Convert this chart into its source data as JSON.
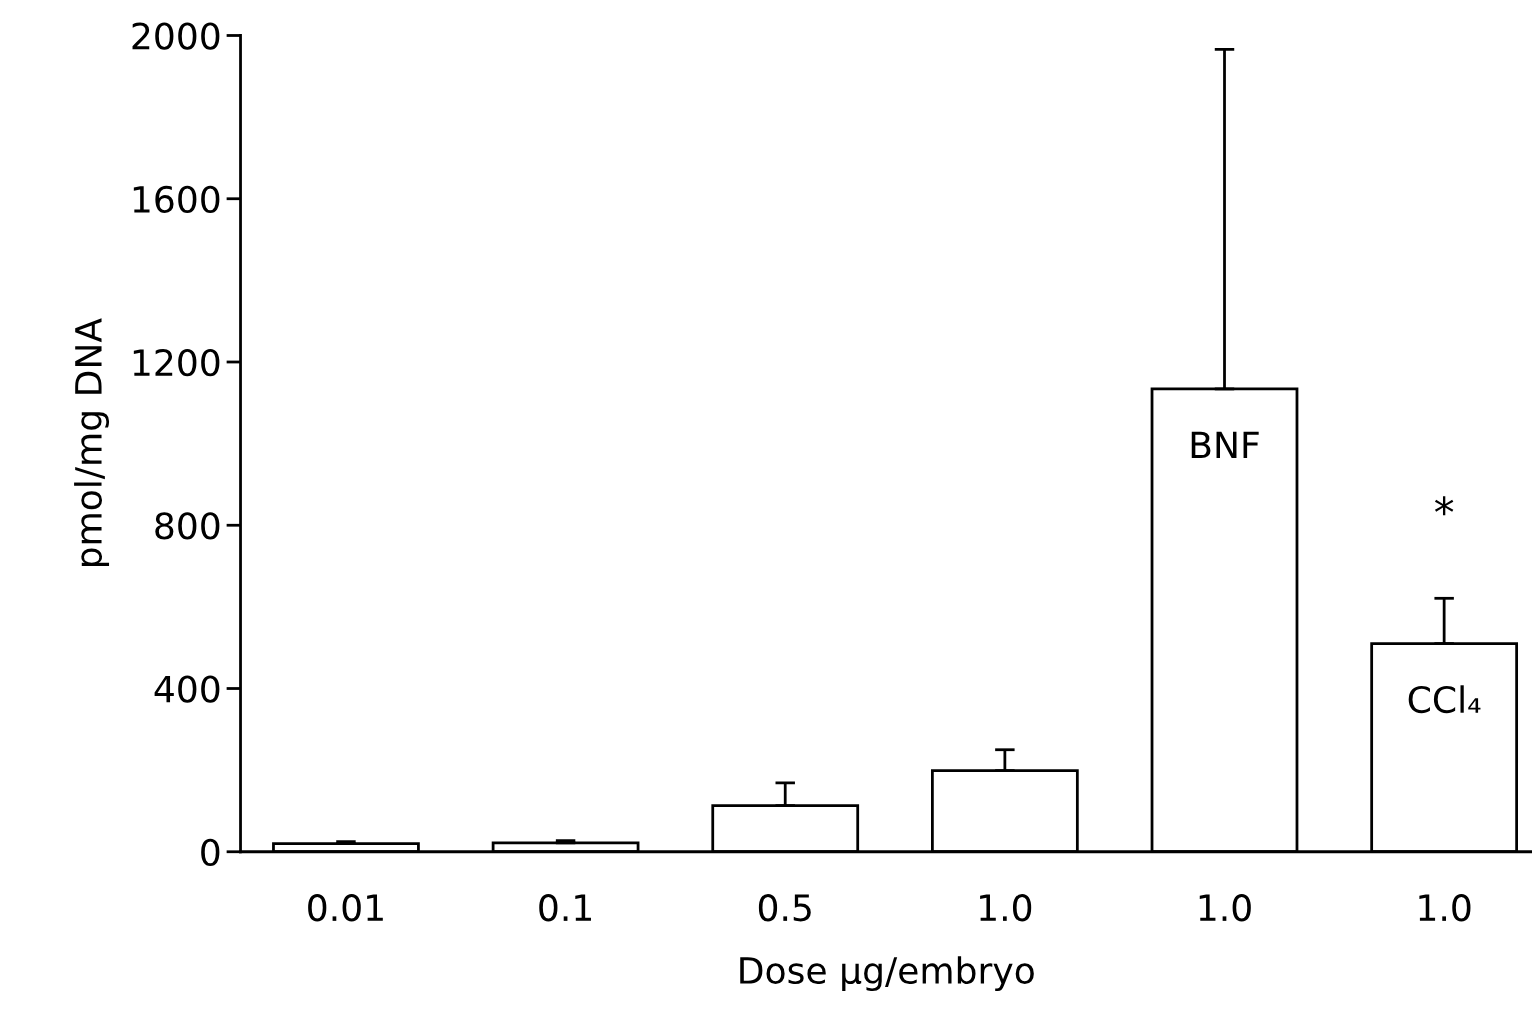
{
  "chart_data": {
    "type": "bar",
    "xlabel": "Dose μg/embryo",
    "ylabel": "pmol/mg DNA",
    "categories": [
      "0.01",
      "0.1",
      "0.5",
      "1.0",
      "1.0",
      "1.0"
    ],
    "values": [
      20,
      22,
      113,
      199,
      1134,
      510
    ],
    "errors": [
      5,
      5,
      56,
      51,
      832,
      111
    ],
    "color": "#ffffff",
    "ylim": [
      0,
      2000
    ],
    "yticks": [
      0,
      400,
      800,
      1200,
      1600,
      2000
    ],
    "grid": false,
    "legend": false,
    "value_labels": [
      null,
      null,
      null,
      null,
      "BNF",
      "CCl₄"
    ],
    "annotations": [
      "*"
    ]
  }
}
